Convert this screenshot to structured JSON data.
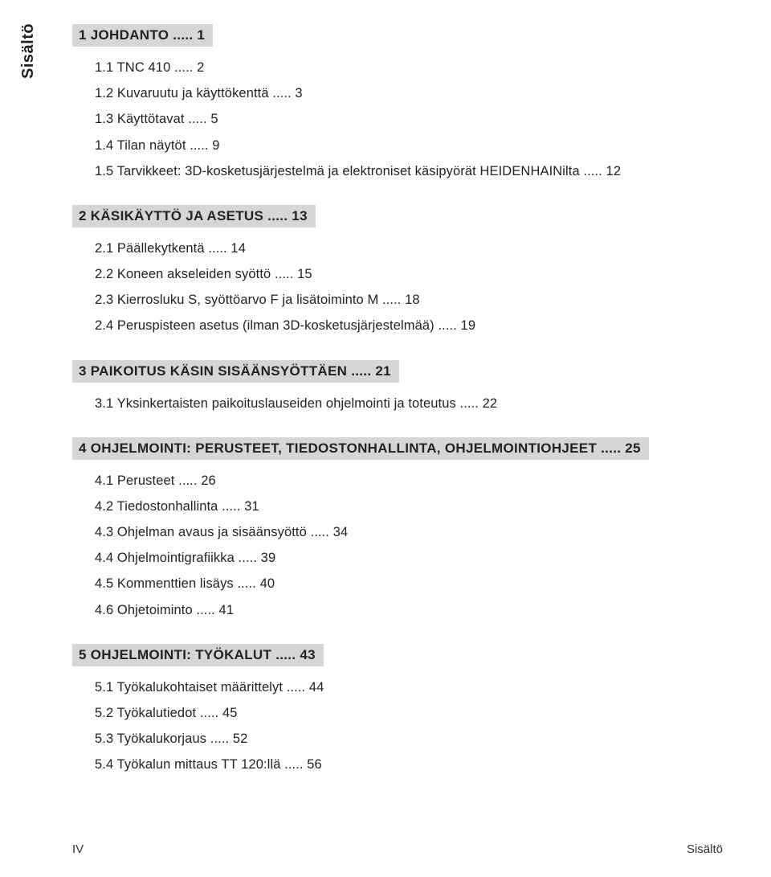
{
  "side_label": "Sisältö",
  "dots": " ..... ",
  "sections": [
    {
      "num": "1",
      "title": "JOHDANTO",
      "page": "1",
      "entries": [
        {
          "num": "1.1",
          "title": "TNC 410",
          "page": "2"
        },
        {
          "num": "1.2",
          "title": "Kuvaruutu ja käyttökenttä",
          "page": "3"
        },
        {
          "num": "1.3",
          "title": "Käyttötavat",
          "page": "5"
        },
        {
          "num": "1.4",
          "title": "Tilan näytöt",
          "page": "9"
        },
        {
          "num": "1.5",
          "title": "Tarvikkeet: 3D-kosketusjärjestelmä ja elektroniset käsipyörät HEIDENHAINilta",
          "page": "12"
        }
      ]
    },
    {
      "num": "2",
      "title": "KÄSIKÄYTTÖ JA ASETUS",
      "page": "13",
      "entries": [
        {
          "num": "2.1",
          "title": "Päällekytkentä",
          "page": "14"
        },
        {
          "num": "2.2",
          "title": "Koneen akseleiden syöttö",
          "page": "15"
        },
        {
          "num": "2.3",
          "title": "Kierrosluku S, syöttöarvo F ja lisätoiminto M",
          "page": "18"
        },
        {
          "num": "2.4",
          "title": "Peruspisteen asetus (ilman 3D-kosketusjärjestelmää)",
          "page": "19"
        }
      ]
    },
    {
      "num": "3",
      "title": "PAIKOITUS KÄSIN SISÄÄNSYÖTTÄEN",
      "page": "21",
      "entries": [
        {
          "num": "3.1",
          "title": "Yksinkertaisten paikoituslauseiden ohjelmointi ja toteutus",
          "page": "22"
        }
      ]
    },
    {
      "num": "4",
      "title": "OHJELMOINTI: PERUSTEET, TIEDOSTONHALLINTA, OHJELMOINTIOHJEET",
      "page": "25",
      "entries": [
        {
          "num": "4.1",
          "title": "Perusteet",
          "page": "26"
        },
        {
          "num": "4.2",
          "title": "Tiedostonhallinta",
          "page": "31"
        },
        {
          "num": "4.3",
          "title": "Ohjelman avaus ja sisäänsyöttö",
          "page": "34"
        },
        {
          "num": "4.4",
          "title": "Ohjelmointigrafiikka",
          "page": "39"
        },
        {
          "num": "4.5",
          "title": "Kommenttien lisäys",
          "page": "40"
        },
        {
          "num": "4.6",
          "title": "Ohjetoiminto",
          "page": "41"
        }
      ]
    },
    {
      "num": "5",
      "title": "OHJELMOINTI: TYÖKALUT",
      "page": "43",
      "entries": [
        {
          "num": "5.1",
          "title": "Työkalukohtaiset määrittelyt",
          "page": "44"
        },
        {
          "num": "5.2",
          "title": "Työkalutiedot",
          "page": "45"
        },
        {
          "num": "5.3",
          "title": "Työkalukorjaus",
          "page": "52"
        },
        {
          "num": "5.4",
          "title": "Työkalun mittaus TT 120:llä",
          "page": "56"
        }
      ]
    }
  ],
  "footer": {
    "left": "IV",
    "right": "Sisältö"
  },
  "style": {
    "highlight_bg": "#d6d6d6",
    "page_bg": "#ffffff",
    "text_color": "#222222",
    "side_fontsize": 20,
    "chapter_fontsize": 17,
    "entry_fontsize": 16.5
  }
}
